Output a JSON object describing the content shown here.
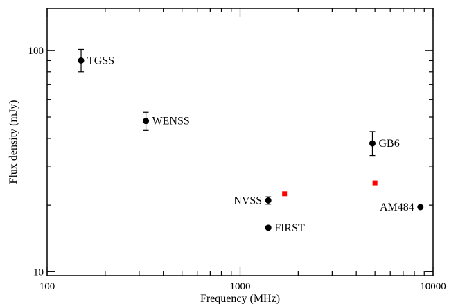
{
  "chart_data": {
    "type": "scatter",
    "xlabel": "Frequency (MHz)",
    "ylabel": "Flux density (mJy)",
    "xscale": "log",
    "yscale": "log",
    "xlim": [
      100,
      10000
    ],
    "ylim": [
      9.6,
      155
    ],
    "x_major_ticks": [
      100,
      1000,
      10000
    ],
    "x_tick_labels": [
      "100",
      "1000",
      "10000"
    ],
    "y_major_ticks": [
      10,
      100
    ],
    "y_tick_labels": [
      "10",
      "100"
    ],
    "grid": false,
    "series": [
      {
        "marker": "circle",
        "color": "#000000",
        "points": [
          {
            "label": "TGSS",
            "x": 150,
            "y": 90,
            "yerr_low": 80,
            "yerr_high": 101,
            "label_side": "right"
          },
          {
            "label": "WENSS",
            "x": 325,
            "y": 48,
            "yerr_low": 43.5,
            "yerr_high": 52.5,
            "label_side": "right"
          },
          {
            "label": "NVSS",
            "x": 1400,
            "y": 21,
            "yerr_low": 20.2,
            "yerr_high": 21.8,
            "label_side": "left"
          },
          {
            "label": "FIRST",
            "x": 1400,
            "y": 15.8,
            "label_side": "right"
          },
          {
            "label": "GB6",
            "x": 4850,
            "y": 38,
            "yerr_low": 33.5,
            "yerr_high": 43,
            "label_side": "right"
          },
          {
            "label": "AM484",
            "x": 8600,
            "y": 19.6,
            "label_side": "left"
          }
        ]
      },
      {
        "marker": "square",
        "color": "#ff0000",
        "points": [
          {
            "x": 1700,
            "y": 22.5
          },
          {
            "x": 5000,
            "y": 25.2
          }
        ]
      }
    ]
  }
}
